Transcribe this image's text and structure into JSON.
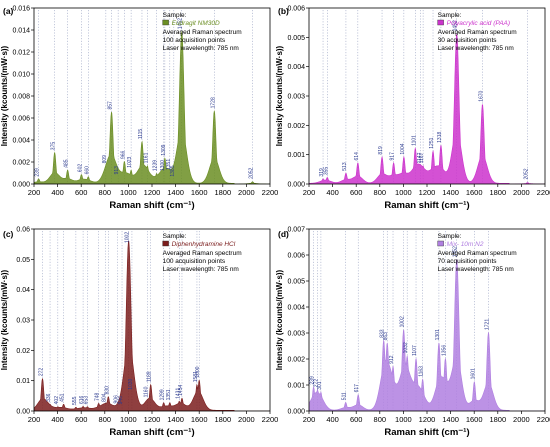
{
  "chart_data": [
    {
      "type": "area",
      "panel_label": "(a)",
      "xlabel": "Raman shift (cm⁻¹)",
      "ylabel": "Intensity (kcounts/(mW·s))",
      "xlim": [
        200,
        2200
      ],
      "ylim": [
        0,
        0.016
      ],
      "xticks": [
        200,
        400,
        600,
        800,
        1000,
        1200,
        1400,
        1600,
        1800,
        2000,
        2200
      ],
      "yticks": [
        0.0,
        0.002,
        0.004,
        0.006,
        0.008,
        0.01,
        0.012,
        0.014,
        0.016
      ],
      "ytick_decimals": 3,
      "color": "#6b8e23",
      "legend": {
        "header": "Sample:",
        "series_name": "Eudragit NM30D",
        "lines": [
          "Averaged Raman spectrum",
          "100 acquisition points",
          "Laser wavelength: 785 nm"
        ],
        "position": "top-right"
      },
      "peaks": [
        {
          "x": 239,
          "y": 0.0004
        },
        {
          "x": 375,
          "y": 0.0028
        },
        {
          "x": 485,
          "y": 0.0012
        },
        {
          "x": 602,
          "y": 0.0008
        },
        {
          "x": 660,
          "y": 0.0006
        },
        {
          "x": 809,
          "y": 0.0016
        },
        {
          "x": 857,
          "y": 0.0065
        },
        {
          "x": 913,
          "y": 0.0006
        },
        {
          "x": 966,
          "y": 0.002
        },
        {
          "x": 1023,
          "y": 0.0012
        },
        {
          "x": 1115,
          "y": 0.0038
        },
        {
          "x": 1161,
          "y": 0.0016
        },
        {
          "x": 1239,
          "y": 0.0009
        },
        {
          "x": 1300,
          "y": 0.0009
        },
        {
          "x": 1309,
          "y": 0.0023
        },
        {
          "x": 1351,
          "y": 0.001
        },
        {
          "x": 1385,
          "y": 0.0004
        },
        {
          "x": 1452,
          "y": 0.0138
        },
        {
          "x": 1728,
          "y": 0.0066
        },
        {
          "x": 2052,
          "y": 0.0002
        }
      ]
    },
    {
      "type": "area",
      "panel_label": "(b)",
      "xlabel": "Raman shift (cm⁻¹)",
      "ylabel": "Intensity (kcounts/(mW·s))",
      "xlim": [
        200,
        2200
      ],
      "ylim": [
        0,
        0.006
      ],
      "xticks": [
        200,
        400,
        600,
        800,
        1000,
        1200,
        1400,
        1600,
        1800,
        2000,
        2200
      ],
      "yticks": [
        0.0,
        0.001,
        0.002,
        0.003,
        0.004,
        0.005,
        0.006
      ],
      "ytick_decimals": 3,
      "color": "#cc33cc",
      "legend": {
        "header": "Sample:",
        "series_name": "Polyacrylic acid (PAA)",
        "lines": [
          "Averaged Raman spectrum",
          "30 acquisition points",
          "Laser wavelength: 785 nm"
        ],
        "position": "top-right"
      },
      "peaks": [
        {
          "x": 319,
          "y": 0.00015
        },
        {
          "x": 355,
          "y": 0.0002
        },
        {
          "x": 513,
          "y": 0.00035
        },
        {
          "x": 614,
          "y": 0.0007
        },
        {
          "x": 819,
          "y": 0.0009
        },
        {
          "x": 917,
          "y": 0.0007
        },
        {
          "x": 1004,
          "y": 0.0009
        },
        {
          "x": 1101,
          "y": 0.0012
        },
        {
          "x": 1147,
          "y": 0.0006
        },
        {
          "x": 1167,
          "y": 0.0006
        },
        {
          "x": 1251,
          "y": 0.0011
        },
        {
          "x": 1318,
          "y": 0.0013
        },
        {
          "x": 1452,
          "y": 0.0051
        },
        {
          "x": 1670,
          "y": 0.0027
        },
        {
          "x": 2052,
          "y": 5e-05
        }
      ]
    },
    {
      "type": "area",
      "panel_label": "(c)",
      "xlabel": "Raman shift (cm⁻¹)",
      "ylabel": "Intensity (kcounts/(mW·s))",
      "xlim": [
        200,
        2200
      ],
      "ylim": [
        0,
        0.06
      ],
      "xticks": [
        200,
        400,
        600,
        800,
        1000,
        1200,
        1400,
        1600,
        1800,
        2000,
        2200
      ],
      "yticks": [
        0.0,
        0.01,
        0.02,
        0.03,
        0.04,
        0.05,
        0.06
      ],
      "ytick_decimals": 2,
      "color": "#7b1d1d",
      "legend": {
        "header": "Sample:",
        "series_name": "Diphenhydramine HCl",
        "lines": [
          "Averaged Raman spectrum",
          "100 acquisition points",
          "Laser wavelength: 785 nm"
        ],
        "position": "top-right"
      },
      "peaks": [
        {
          "x": 272,
          "y": 0.0105
        },
        {
          "x": 336,
          "y": 0.002
        },
        {
          "x": 402,
          "y": 0.0012
        },
        {
          "x": 451,
          "y": 0.002
        },
        {
          "x": 555,
          "y": 0.001
        },
        {
          "x": 616,
          "y": 0.0013
        },
        {
          "x": 653,
          "y": 0.0012
        },
        {
          "x": 748,
          "y": 0.0023
        },
        {
          "x": 804,
          "y": 0.002
        },
        {
          "x": 830,
          "y": 0.0045
        },
        {
          "x": 906,
          "y": 0.0015
        },
        {
          "x": 946,
          "y": 0.0012
        },
        {
          "x": 1002,
          "y": 0.056
        },
        {
          "x": 1030,
          "y": 0.006
        },
        {
          "x": 1160,
          "y": 0.0035
        },
        {
          "x": 1189,
          "y": 0.0085
        },
        {
          "x": 1299,
          "y": 0.0025
        },
        {
          "x": 1351,
          "y": 0.0025
        },
        {
          "x": 1431,
          "y": 0.003
        },
        {
          "x": 1454,
          "y": 0.004
        },
        {
          "x": 1581,
          "y": 0.0085
        },
        {
          "x": 1600,
          "y": 0.01
        }
      ]
    },
    {
      "type": "area",
      "panel_label": "(d)",
      "xlabel": "Raman shift (cm⁻¹)",
      "ylabel": "Intensity (kcounts/(mW·s))",
      "xlim": [
        200,
        2200
      ],
      "ylim": [
        0,
        0.007
      ],
      "xticks": [
        200,
        400,
        600,
        800,
        1000,
        1200,
        1400,
        1600,
        1800,
        2000,
        2200
      ],
      "yticks": [
        0.0,
        0.001,
        0.002,
        0.003,
        0.004,
        0.005,
        0.006,
        0.007
      ],
      "ytick_decimals": 3,
      "color": "#b07fe0",
      "legend": {
        "header": "Sample:",
        "series_name": "Mix- 10m N2",
        "lines": [
          "Averaged Raman spectrum",
          "70 acquisition points",
          "Laser wavelength: 785 nm"
        ],
        "position": "top-right"
      },
      "peaks": [
        {
          "x": 239,
          "y": 0.0009
        },
        {
          "x": 272,
          "y": 0.0008
        },
        {
          "x": 301,
          "y": 0.0007
        },
        {
          "x": 511,
          "y": 0.0003
        },
        {
          "x": 617,
          "y": 0.0006
        },
        {
          "x": 833,
          "y": 0.0027
        },
        {
          "x": 863,
          "y": 0.0026
        },
        {
          "x": 912,
          "y": 0.0017
        },
        {
          "x": 1002,
          "y": 0.0031
        },
        {
          "x": 1032,
          "y": 0.0021
        },
        {
          "x": 1107,
          "y": 0.002
        },
        {
          "x": 1163,
          "y": 0.0012
        },
        {
          "x": 1301,
          "y": 0.0026
        },
        {
          "x": 1356,
          "y": 0.002
        },
        {
          "x": 1452,
          "y": 0.0058
        },
        {
          "x": 1601,
          "y": 0.0011
        },
        {
          "x": 1721,
          "y": 0.003
        }
      ]
    }
  ]
}
